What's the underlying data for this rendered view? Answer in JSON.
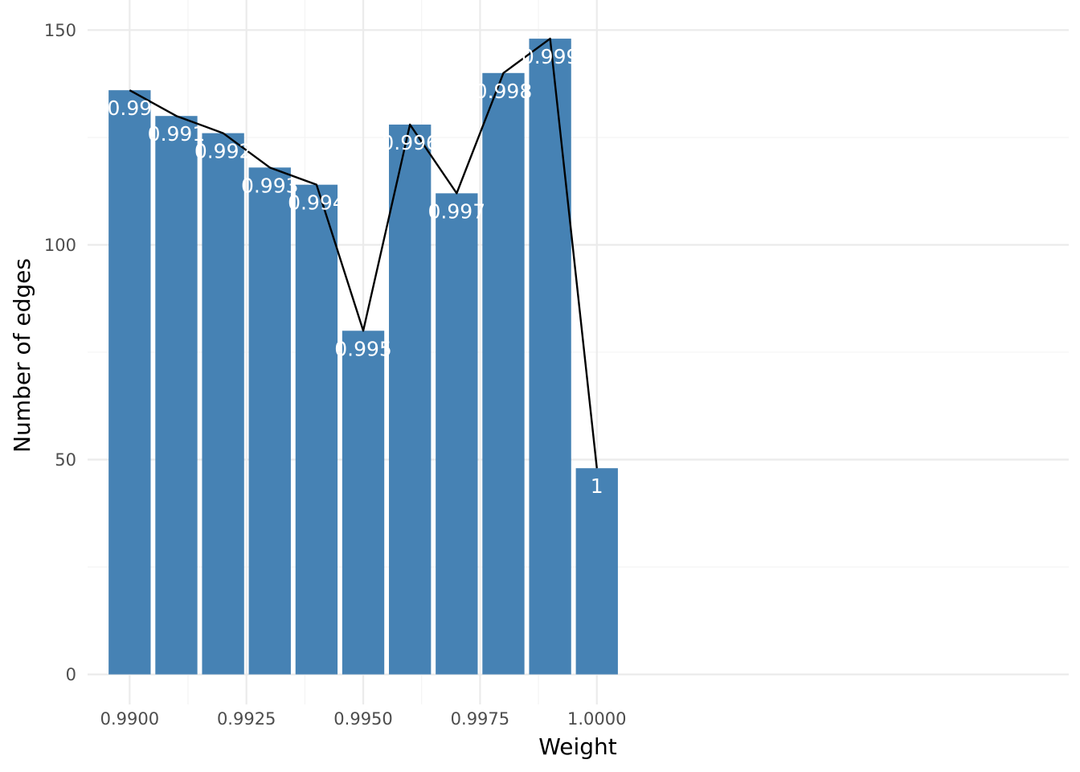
{
  "chart_data": {
    "type": "bar",
    "title": "",
    "xlabel": "Weight",
    "ylabel": "Number of edges",
    "x": [
      0.99,
      0.991,
      0.992,
      0.993,
      0.994,
      0.995,
      0.996,
      0.997,
      0.998,
      0.999,
      1.0
    ],
    "values": [
      136,
      130,
      126,
      118,
      114,
      80,
      128,
      112,
      140,
      148,
      48
    ],
    "bar_labels": [
      "0.99",
      "0.991",
      "0.992",
      "0.993",
      "0.994",
      "0.995",
      "0.996",
      "0.997",
      "0.998",
      "0.999",
      "1"
    ],
    "overlay_line": true,
    "xlim": [
      0.9891,
      1.0101
    ],
    "ylim": [
      -7,
      157
    ],
    "x_ticks": [
      0.99,
      0.9925,
      0.995,
      0.9975,
      1.0
    ],
    "x_tick_labels": [
      "0.9900",
      "0.9925",
      "0.9950",
      "0.9975",
      "1.0000"
    ],
    "y_ticks": [
      0,
      50,
      100,
      150
    ],
    "y_tick_labels": [
      "0",
      "50",
      "100",
      "150"
    ],
    "grid": true,
    "legend": "none",
    "colors": {
      "bar": "#4682b4",
      "line": "#000000",
      "bar_label": "#ffffff"
    }
  }
}
